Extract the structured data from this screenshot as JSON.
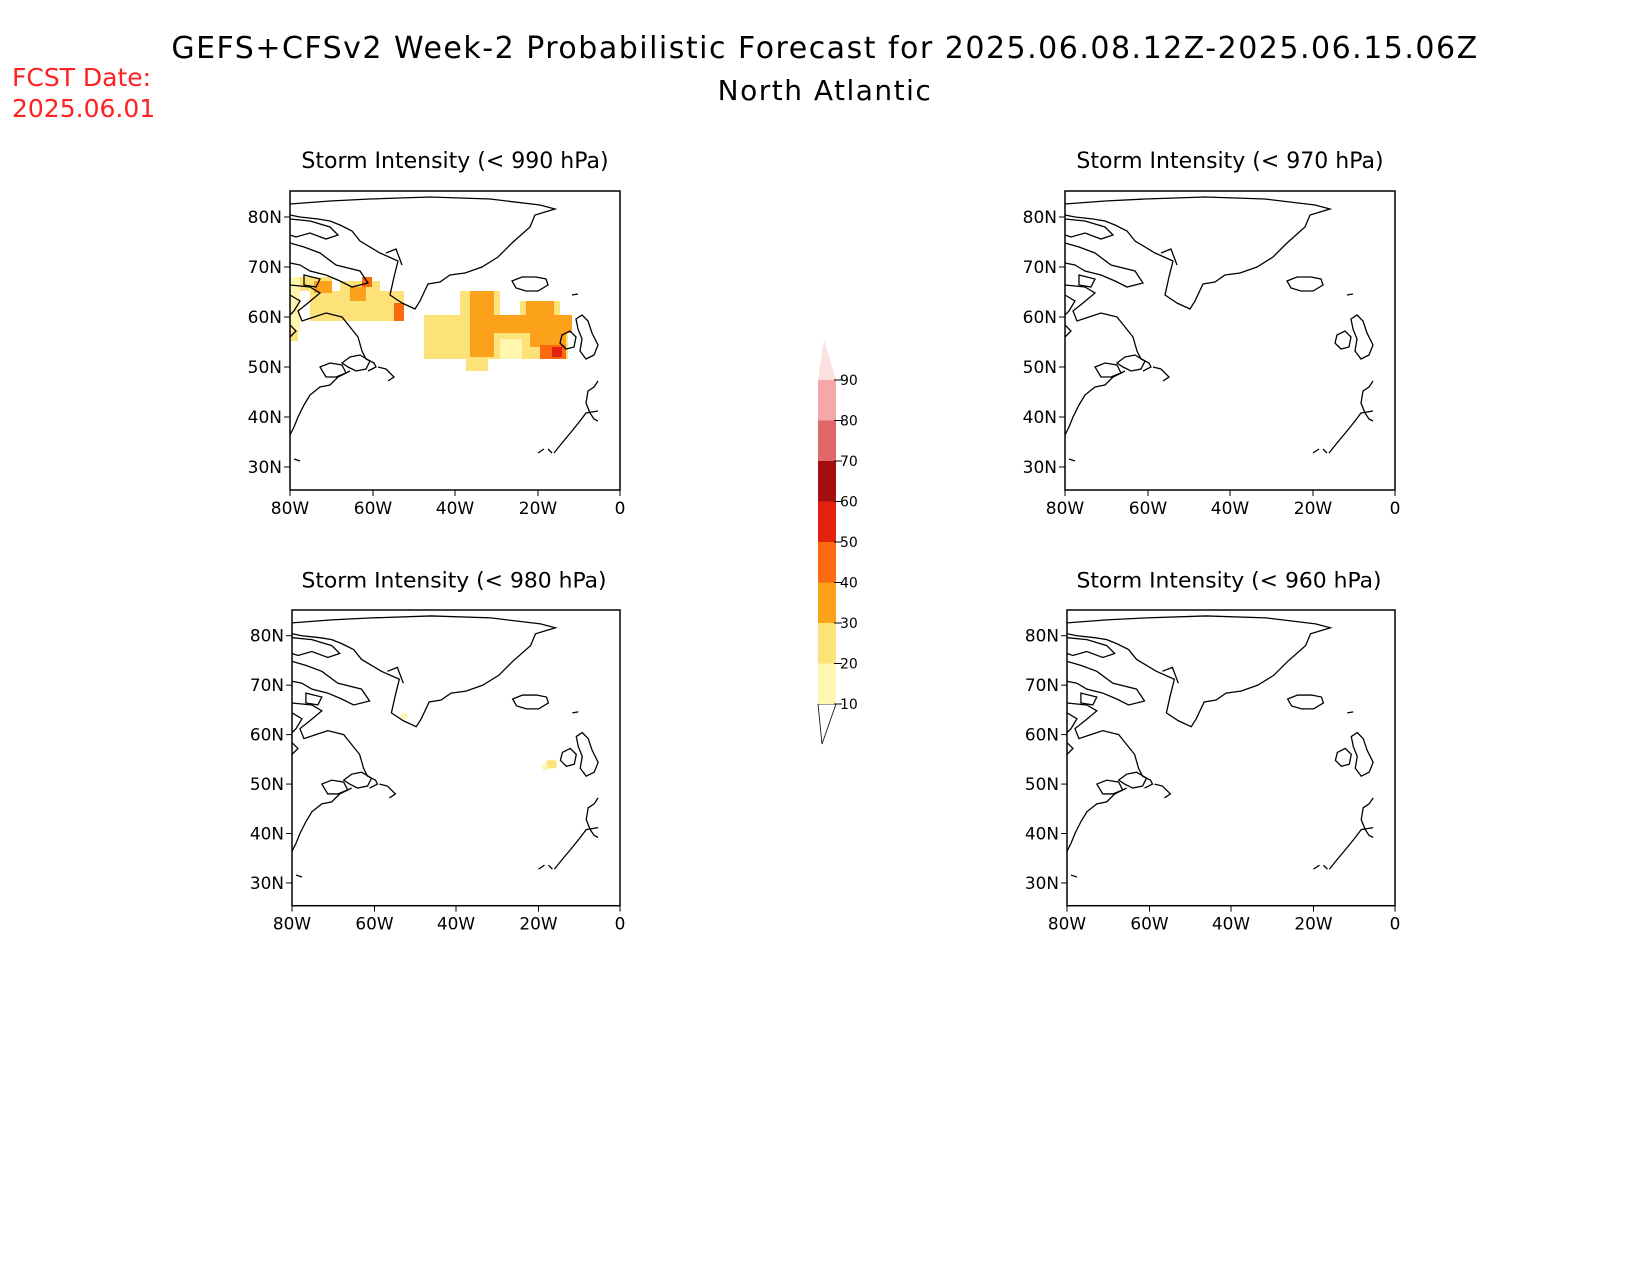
{
  "header": {
    "title": "GEFS+CFSv2 Week-2 Probabilistic Forecast for 2025.06.08.12Z-2025.06.15.06Z",
    "subtitle": "North Atlantic",
    "fcst_label": "FCST Date:",
    "fcst_date": "2025.06.01",
    "fcst_color": "#ff2020"
  },
  "panels": [
    {
      "id": "p990",
      "title": "Storm Intensity (< 990 hPa)"
    },
    {
      "id": "p970",
      "title": "Storm Intensity (< 970 hPa)"
    },
    {
      "id": "p980",
      "title": "Storm Intensity (< 980 hPa)"
    },
    {
      "id": "p960",
      "title": "Storm Intensity (< 960 hPa)"
    }
  ],
  "axes": {
    "lon_ticks": [
      "80W",
      "60W",
      "40W",
      "20W",
      "0"
    ],
    "lat_ticks": [
      "80N",
      "70N",
      "60N",
      "50N",
      "40N",
      "30N"
    ]
  },
  "colorbar": {
    "labels": [
      "10",
      "20",
      "30",
      "40",
      "50",
      "60",
      "70",
      "80",
      "90"
    ],
    "colors": [
      "#fff7b0",
      "#fde27a",
      "#fca21a",
      "#fb6a0e",
      "#e3210c",
      "#a30e0e",
      "#e06868",
      "#f5a8a8",
      "#fde0e0"
    ]
  }
}
